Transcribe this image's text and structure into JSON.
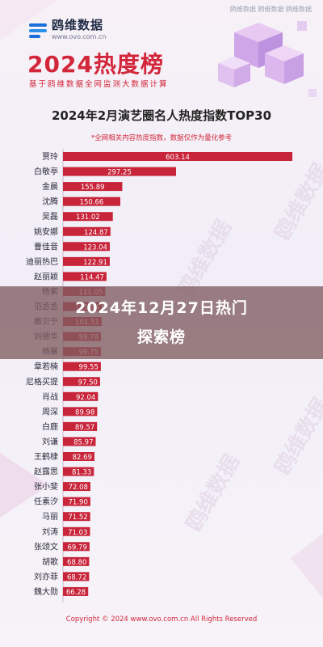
{
  "header": {
    "brand_top": "鸥维数据 鸥维数据 鸥维数据",
    "logo_name": "鸥维数据",
    "logo_url": "www.ovo.com.cn",
    "big_title": "2024热度榜",
    "sub_title": "基于鸥维数据全网监测大数据计算"
  },
  "overlay": {
    "line1": "2024年12月27日热门",
    "line2": "探索榜"
  },
  "watermark_text": "鸥维数据",
  "footer": {
    "copyright": "Copyright © 2024 www.ovo.com.cn All Rights Reserved"
  },
  "colors": {
    "bar": "#c8243a",
    "bar_faded": "#d0677a",
    "title_red": "#d2263a",
    "label_bg": "#ffffff"
  },
  "chart_data": {
    "type": "bar",
    "orientation": "horizontal",
    "title": "2024年2月演艺圈名人热度指数TOP30",
    "subtitle": "*全网相关内容热度指数，数据仅作为量化参考",
    "categories": [
      "贾玲",
      "白敬亭",
      "金晨",
      "沈腾",
      "吴磊",
      "姚安娜",
      "曹佳音",
      "迪丽热巴",
      "赵丽颖",
      "杨紫",
      "范丞丞",
      "撒贝宁",
      "刘德华",
      "杨幂",
      "章若楠",
      "尼格买提",
      "肖战",
      "周深",
      "白鹿",
      "刘谦",
      "王鹤棣",
      "赵露思",
      "张小斐",
      "任素汐",
      "马丽",
      "刘涛",
      "张颂文",
      "胡歌",
      "刘亦菲",
      "魏大勋"
    ],
    "values": [
      603.14,
      297.25,
      155.89,
      150.66,
      131.02,
      124.87,
      123.04,
      122.91,
      114.47,
      111.05,
      101.84,
      101.51,
      99.78,
      99.75,
      99.55,
      97.5,
      92.04,
      89.98,
      89.57,
      85.97,
      82.69,
      81.33,
      72.08,
      71.9,
      71.52,
      71.03,
      69.79,
      68.8,
      68.72,
      66.28
    ],
    "value_labels": [
      "603.14",
      "297.25",
      "155.89",
      "150.66",
      "131.02",
      "124.87",
      "123.04",
      "122.91",
      "114.47",
      "111.05",
      "101.84",
      "101.51",
      "99.78",
      "99.75",
      "99.55",
      "97.50",
      "92.04",
      "89.98",
      "89.57",
      "85.97",
      "82.69",
      "81.33",
      "72.08",
      "71.90",
      "71.52",
      "71.03",
      "69.79",
      "68.80",
      "68.72",
      "66.28"
    ],
    "xlim": [
      0,
      620
    ]
  }
}
